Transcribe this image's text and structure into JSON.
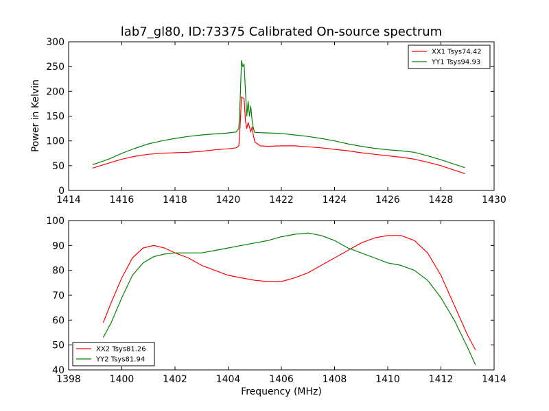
{
  "chart_data": [
    {
      "type": "line",
      "title": "lab7_gl80, ID:73375 Calibrated On-source spectrum",
      "xlabel": "",
      "ylabel": "Power in Kelvin",
      "xlim": [
        1414,
        1430
      ],
      "ylim": [
        0,
        300
      ],
      "xticks": [
        1414,
        1416,
        1418,
        1420,
        1422,
        1424,
        1426,
        1428,
        1430
      ],
      "yticks": [
        0,
        50,
        100,
        150,
        200,
        250,
        300
      ],
      "grid": false,
      "legend_position": "top-right",
      "series": [
        {
          "name": "XX1 Tsys74.42",
          "color": "#ff0000",
          "points": [
            [
              1414.9,
              45
            ],
            [
              1415.5,
              55
            ],
            [
              1416,
              63
            ],
            [
              1416.5,
              69
            ],
            [
              1417,
              73
            ],
            [
              1417.5,
              75
            ],
            [
              1418,
              76
            ],
            [
              1418.5,
              77
            ],
            [
              1419,
              79
            ],
            [
              1419.5,
              82
            ],
            [
              1420,
              84
            ],
            [
              1420.3,
              86
            ],
            [
              1420.4,
              90
            ],
            [
              1420.45,
              130
            ],
            [
              1420.5,
              189
            ],
            [
              1420.6,
              185
            ],
            [
              1420.65,
              140
            ],
            [
              1420.7,
              125
            ],
            [
              1420.75,
              137
            ],
            [
              1420.8,
              128
            ],
            [
              1420.85,
              118
            ],
            [
              1420.9,
              128
            ],
            [
              1420.95,
              110
            ],
            [
              1421,
              98
            ],
            [
              1421.2,
              90
            ],
            [
              1421.5,
              89
            ],
            [
              1422,
              90
            ],
            [
              1422.5,
              90
            ],
            [
              1423,
              88
            ],
            [
              1423.5,
              86
            ],
            [
              1424,
              83
            ],
            [
              1424.5,
              80
            ],
            [
              1425,
              76
            ],
            [
              1425.5,
              73
            ],
            [
              1426,
              70
            ],
            [
              1426.5,
              67
            ],
            [
              1427,
              63
            ],
            [
              1427.5,
              57
            ],
            [
              1428,
              50
            ],
            [
              1428.5,
              41
            ],
            [
              1428.9,
              34
            ]
          ]
        },
        {
          "name": "YY1 Tsys94.93",
          "color": "#008000",
          "points": [
            [
              1414.9,
              52
            ],
            [
              1415.5,
              63
            ],
            [
              1416,
              75
            ],
            [
              1416.5,
              85
            ],
            [
              1417,
              94
            ],
            [
              1417.5,
              100
            ],
            [
              1418,
              105
            ],
            [
              1418.5,
              109
            ],
            [
              1419,
              112
            ],
            [
              1419.5,
              114
            ],
            [
              1420,
              116
            ],
            [
              1420.3,
              118
            ],
            [
              1420.4,
              125
            ],
            [
              1420.45,
              180
            ],
            [
              1420.5,
              262
            ],
            [
              1420.55,
              250
            ],
            [
              1420.6,
              255
            ],
            [
              1420.65,
              200
            ],
            [
              1420.7,
              150
            ],
            [
              1420.75,
              180
            ],
            [
              1420.8,
              150
            ],
            [
              1420.85,
              170
            ],
            [
              1420.9,
              140
            ],
            [
              1420.95,
              125
            ],
            [
              1421,
              117
            ],
            [
              1421.5,
              116
            ],
            [
              1422,
              115
            ],
            [
              1422.5,
              112
            ],
            [
              1423,
              109
            ],
            [
              1423.5,
              105
            ],
            [
              1424,
              100
            ],
            [
              1424.5,
              94
            ],
            [
              1425,
              89
            ],
            [
              1425.5,
              85
            ],
            [
              1426,
              82
            ],
            [
              1426.5,
              80
            ],
            [
              1427,
              77
            ],
            [
              1427.5,
              70
            ],
            [
              1428,
              62
            ],
            [
              1428.5,
              53
            ],
            [
              1428.9,
              46
            ]
          ]
        }
      ]
    },
    {
      "type": "line",
      "title": "",
      "xlabel": "Frequency (MHz)",
      "ylabel": "",
      "xlim": [
        1398,
        1414
      ],
      "ylim": [
        40,
        100
      ],
      "xticks": [
        1398,
        1400,
        1402,
        1404,
        1406,
        1408,
        1410,
        1412,
        1414
      ],
      "yticks": [
        40,
        50,
        60,
        70,
        80,
        90,
        100
      ],
      "grid": false,
      "legend_position": "bottom-left",
      "series": [
        {
          "name": "XX2 Tsys81.26",
          "color": "#ff0000",
          "points": [
            [
              1399.3,
              59
            ],
            [
              1399.6,
              67
            ],
            [
              1400,
              77
            ],
            [
              1400.4,
              85
            ],
            [
              1400.8,
              89
            ],
            [
              1401.2,
              90
            ],
            [
              1401.6,
              89
            ],
            [
              1402,
              87
            ],
            [
              1402.5,
              85
            ],
            [
              1403,
              82
            ],
            [
              1403.5,
              80
            ],
            [
              1404,
              78
            ],
            [
              1404.5,
              77
            ],
            [
              1405,
              76
            ],
            [
              1405.5,
              75.5
            ],
            [
              1406,
              75.5
            ],
            [
              1406.5,
              77
            ],
            [
              1407,
              79
            ],
            [
              1407.5,
              82
            ],
            [
              1408,
              85
            ],
            [
              1408.5,
              88
            ],
            [
              1409,
              91
            ],
            [
              1409.5,
              93
            ],
            [
              1410,
              94
            ],
            [
              1410.5,
              94
            ],
            [
              1411,
              92
            ],
            [
              1411.5,
              87
            ],
            [
              1412,
              78
            ],
            [
              1412.5,
              66
            ],
            [
              1413,
              54
            ],
            [
              1413.3,
              48
            ]
          ]
        },
        {
          "name": "YY2 Tsys81.94",
          "color": "#008000",
          "points": [
            [
              1399.3,
              53
            ],
            [
              1399.6,
              59
            ],
            [
              1400,
              69
            ],
            [
              1400.4,
              78
            ],
            [
              1400.8,
              83
            ],
            [
              1401.2,
              85.5
            ],
            [
              1401.6,
              86.5
            ],
            [
              1402,
              87
            ],
            [
              1402.5,
              87
            ],
            [
              1403,
              87
            ],
            [
              1403.5,
              88
            ],
            [
              1404,
              89
            ],
            [
              1404.5,
              90
            ],
            [
              1405,
              91
            ],
            [
              1405.5,
              92
            ],
            [
              1406,
              93.5
            ],
            [
              1406.5,
              94.5
            ],
            [
              1407,
              95
            ],
            [
              1407.5,
              94
            ],
            [
              1408,
              92
            ],
            [
              1408.5,
              89
            ],
            [
              1409,
              87
            ],
            [
              1409.5,
              85
            ],
            [
              1410,
              83
            ],
            [
              1410.5,
              82
            ],
            [
              1411,
              80
            ],
            [
              1411.5,
              76
            ],
            [
              1412,
              69
            ],
            [
              1412.5,
              60
            ],
            [
              1413,
              49
            ],
            [
              1413.3,
              42
            ]
          ]
        }
      ]
    }
  ]
}
